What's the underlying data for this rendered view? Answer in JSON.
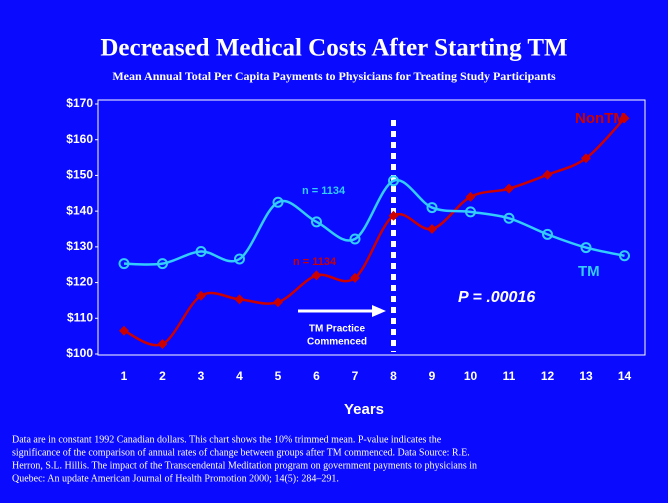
{
  "chart_data": {
    "type": "line",
    "title": "Decreased Medical Costs After Starting TM",
    "subtitle": "Mean Annual Total Per Capita Payments to Physicians for Treating Study Participants",
    "x_label": "Years",
    "categories": [
      1,
      2,
      3,
      4,
      5,
      6,
      7,
      8,
      9,
      10,
      11,
      12,
      13,
      14
    ],
    "series": [
      {
        "name": "NonTM",
        "color": "#cc0000",
        "marker": "diamond",
        "values": [
          106.5,
          102.8,
          116.3,
          115.3,
          114.5,
          122,
          121.3,
          138.7,
          135,
          144,
          146.3,
          150.2,
          154.8,
          166
        ]
      },
      {
        "name": "TM",
        "color": "#33ccff",
        "marker": "circle",
        "values": [
          125.3,
          125.3,
          128.7,
          126.6,
          142.5,
          137,
          132.2,
          148.5,
          141,
          139.8,
          138,
          133.5,
          129.8,
          127.5
        ]
      }
    ],
    "ylim": [
      100,
      170
    ],
    "yticks": [
      {
        "value": 100,
        "label": "$100"
      },
      {
        "value": 110,
        "label": "$110"
      },
      {
        "value": 120,
        "label": "$120"
      },
      {
        "value": 130,
        "label": "$130"
      },
      {
        "value": 140,
        "label": "$140"
      },
      {
        "value": 150,
        "label": "$150"
      },
      {
        "value": 160,
        "label": "$160"
      },
      {
        "value": 170,
        "label": "$170"
      }
    ],
    "event": {
      "x": 8,
      "label_lines": [
        "TM Practice",
        "Commenced"
      ]
    },
    "annotations": {
      "n_tm": "n = 1134",
      "n_nontm": "n = 1134",
      "p_value": "P = .00016"
    },
    "footnote": [
      "Data are in constant 1992 Canadian dollars. This chart shows the 10% trimmed mean. P-value indicates the",
      "significance of the comparison of annual rates of change between groups after TM commenced. Data Source: R.E.",
      "Herron, S.L. Hillis. The impact of the Transcendental Meditation program on government payments to physicians in",
      "Quebec: An update  American Journal of Health Promotion 2000; 14(5): 284–291."
    ]
  }
}
